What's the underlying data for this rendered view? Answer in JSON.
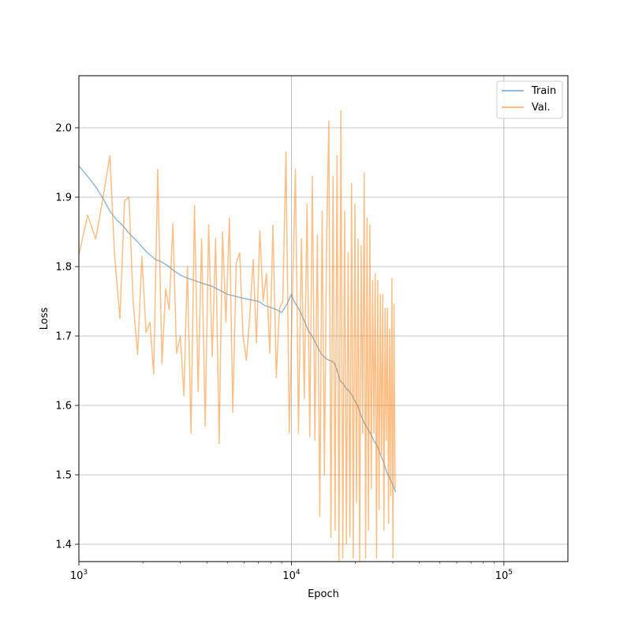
{
  "chart_data": {
    "type": "line",
    "title": "",
    "xlabel": "Epoch",
    "ylabel": "Loss",
    "xscale": "log",
    "xlim": [
      1000,
      200000
    ],
    "ylim": [
      1.375,
      2.075
    ],
    "grid": true,
    "legend_position": "top-right",
    "x_ticks": [
      {
        "value": 1000,
        "base": "10",
        "exp": "3"
      },
      {
        "value": 10000,
        "base": "10",
        "exp": "4"
      },
      {
        "value": 100000,
        "base": "10",
        "exp": "5"
      }
    ],
    "y_ticks": [
      {
        "value": 1.4,
        "label": "1.4"
      },
      {
        "value": 1.5,
        "label": "1.5"
      },
      {
        "value": 1.6,
        "label": "1.6"
      },
      {
        "value": 1.7,
        "label": "1.7"
      },
      {
        "value": 1.8,
        "label": "1.8"
      },
      {
        "value": 1.9,
        "label": "1.9"
      },
      {
        "value": 2.0,
        "label": "2.0"
      }
    ],
    "series": [
      {
        "name": "Train",
        "color": "#1f77b4",
        "opacity": 0.5,
        "x": [
          1000,
          1100,
          1200,
          1300,
          1400,
          1500,
          1600,
          1700,
          1800,
          1900,
          2000,
          2100,
          2200,
          2300,
          2400,
          2600,
          2800,
          3000,
          3200,
          3500,
          3800,
          4200,
          4600,
          5000,
          5500,
          6000,
          6500,
          7000,
          7500,
          8000,
          8500,
          9000,
          9500,
          10000,
          10300,
          10700,
          11000,
          11500,
          12000,
          12500,
          13000,
          13500,
          14000,
          14500,
          15000,
          15500,
          16000,
          16500,
          17000,
          17500,
          18000,
          18500,
          19000,
          19500,
          20000,
          20500,
          21000,
          21500,
          22000,
          22500,
          23000,
          23500,
          24000,
          24500,
          25000,
          25500,
          26000,
          26500,
          27000,
          27500,
          28000,
          28500,
          29000,
          29500,
          30000,
          30500,
          31000
        ],
        "y": [
          1.945,
          1.93,
          1.915,
          1.898,
          1.88,
          1.868,
          1.86,
          1.85,
          1.842,
          1.835,
          1.827,
          1.82,
          1.815,
          1.81,
          1.808,
          1.802,
          1.794,
          1.788,
          1.784,
          1.78,
          1.776,
          1.772,
          1.766,
          1.76,
          1.757,
          1.754,
          1.752,
          1.75,
          1.744,
          1.741,
          1.738,
          1.734,
          1.745,
          1.76,
          1.75,
          1.742,
          1.735,
          1.722,
          1.708,
          1.7,
          1.69,
          1.68,
          1.672,
          1.668,
          1.665,
          1.664,
          1.66,
          1.648,
          1.635,
          1.632,
          1.625,
          1.622,
          1.618,
          1.612,
          1.605,
          1.6,
          1.59,
          1.582,
          1.575,
          1.57,
          1.565,
          1.56,
          1.555,
          1.548,
          1.545,
          1.54,
          1.532,
          1.526,
          1.52,
          1.513,
          1.505,
          1.5,
          1.496,
          1.49,
          1.486,
          1.48,
          1.475
        ]
      },
      {
        "name": "Val.",
        "color": "#ff7f0e",
        "opacity": 0.5,
        "x": [
          1000,
          1100,
          1200,
          1300,
          1400,
          1470,
          1560,
          1640,
          1720,
          1800,
          1890,
          1980,
          2070,
          2160,
          2250,
          2350,
          2460,
          2560,
          2660,
          2770,
          2880,
          3000,
          3120,
          3240,
          3370,
          3500,
          3640,
          3780,
          3930,
          4080,
          4240,
          4400,
          4570,
          4740,
          4920,
          5110,
          5300,
          5500,
          5710,
          5920,
          6140,
          6370,
          6610,
          6850,
          7100,
          7360,
          7630,
          7910,
          8190,
          8490,
          8790,
          9110,
          9430,
          9770,
          10100,
          10450,
          10800,
          11150,
          11500,
          11850,
          12200,
          12550,
          12900,
          13250,
          13600,
          13950,
          14300,
          14650,
          15000,
          15350,
          15700,
          16050,
          16400,
          16750,
          17100,
          17450,
          17800,
          18150,
          18500,
          18850,
          19200,
          19550,
          19900,
          20250,
          20600,
          20950,
          21300,
          21650,
          22000,
          22350,
          22700,
          23050,
          23400,
          23750,
          24100,
          24450,
          24800,
          25150,
          25500,
          25850,
          26200,
          26550,
          26900,
          27250,
          27600,
          27950,
          28300,
          28650,
          29000,
          29350,
          29700,
          30050,
          30400,
          30750
        ],
        "y": [
          1.817,
          1.874,
          1.84,
          1.9,
          1.96,
          1.82,
          1.725,
          1.895,
          1.9,
          1.75,
          1.673,
          1.815,
          1.705,
          1.72,
          1.645,
          1.94,
          1.66,
          1.768,
          1.738,
          1.862,
          1.675,
          1.7,
          1.614,
          1.8,
          1.56,
          1.888,
          1.62,
          1.84,
          1.57,
          1.86,
          1.67,
          1.84,
          1.545,
          1.85,
          1.72,
          1.87,
          1.59,
          1.805,
          1.82,
          1.7,
          1.665,
          1.73,
          1.81,
          1.69,
          1.852,
          1.75,
          1.79,
          1.675,
          1.86,
          1.64,
          1.74,
          1.75,
          1.965,
          1.56,
          1.75,
          1.94,
          1.56,
          1.84,
          1.61,
          1.89,
          1.555,
          1.93,
          1.55,
          1.845,
          1.44,
          1.88,
          1.5,
          1.84,
          2.01,
          1.41,
          1.93,
          1.42,
          1.96,
          1.37,
          2.025,
          1.38,
          1.88,
          1.4,
          1.82,
          1.41,
          1.92,
          1.38,
          1.89,
          1.46,
          1.84,
          1.37,
          1.83,
          1.56,
          1.935,
          1.38,
          1.87,
          1.42,
          1.86,
          1.48,
          1.78,
          1.56,
          1.79,
          1.38,
          1.78,
          1.45,
          1.76,
          1.53,
          1.76,
          1.42,
          1.74,
          1.55,
          1.74,
          1.43,
          1.71,
          1.47,
          1.783,
          1.38,
          1.745,
          1.48
        ]
      }
    ]
  }
}
